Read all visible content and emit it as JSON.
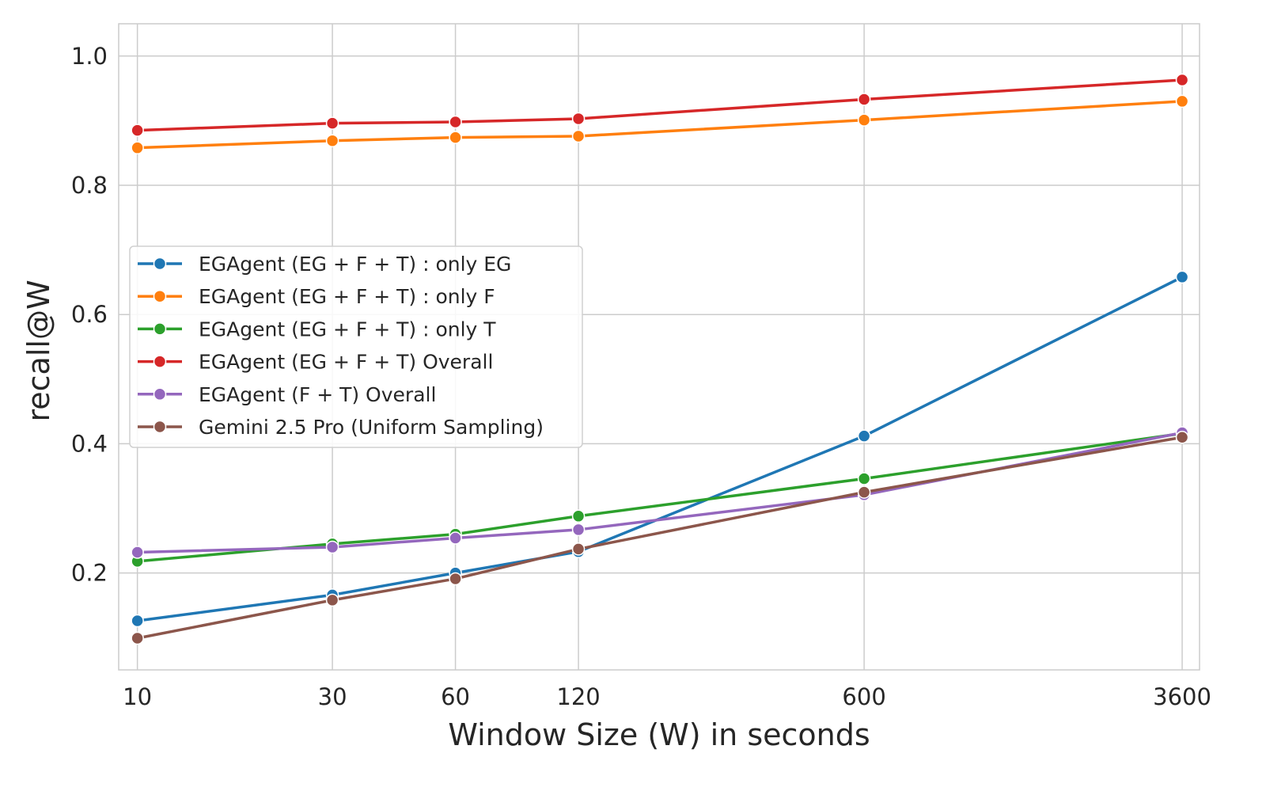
{
  "chart_data": {
    "type": "line",
    "title": "",
    "xlabel": "Window Size (W) in seconds",
    "ylabel": "recall@W",
    "x_scale": "log",
    "x": [
      10,
      30,
      60,
      120,
      600,
      3600
    ],
    "x_tick_labels": [
      "10",
      "30",
      "60",
      "120",
      "600",
      "3600"
    ],
    "y_ticks": [
      0.2,
      0.4,
      0.6,
      0.8,
      1.0
    ],
    "y_tick_labels": [
      "0.2",
      "0.4",
      "0.6",
      "0.8",
      "1.0"
    ],
    "xlim": [
      9,
      3970
    ],
    "ylim": [
      0.05,
      1.05
    ],
    "grid": true,
    "legend_placement": "center-left",
    "series": [
      {
        "name": "EGAgent (EG + F + T) : only EG",
        "color": "#1f77b4",
        "values": [
          0.126,
          0.166,
          0.2,
          0.233,
          0.412,
          0.658
        ]
      },
      {
        "name": "EGAgent (EG + F + T) : only F",
        "color": "#ff7f0e",
        "values": [
          0.858,
          0.869,
          0.874,
          0.876,
          0.901,
          0.93
        ]
      },
      {
        "name": "EGAgent (EG + F + T) : only T",
        "color": "#2ca02c",
        "values": [
          0.218,
          0.245,
          0.26,
          0.288,
          0.346,
          0.416
        ]
      },
      {
        "name": "EGAgent (EG + F + T) Overall",
        "color": "#d62728",
        "values": [
          0.885,
          0.896,
          0.898,
          0.903,
          0.933,
          0.963
        ]
      },
      {
        "name": "EGAgent (F + T) Overall",
        "color": "#9467bd",
        "values": [
          0.232,
          0.24,
          0.254,
          0.267,
          0.321,
          0.417
        ]
      },
      {
        "name": "Gemini 2.5 Pro (Uniform Sampling)",
        "color": "#8c564b",
        "values": [
          0.099,
          0.158,
          0.191,
          0.237,
          0.325,
          0.41
        ]
      }
    ]
  }
}
